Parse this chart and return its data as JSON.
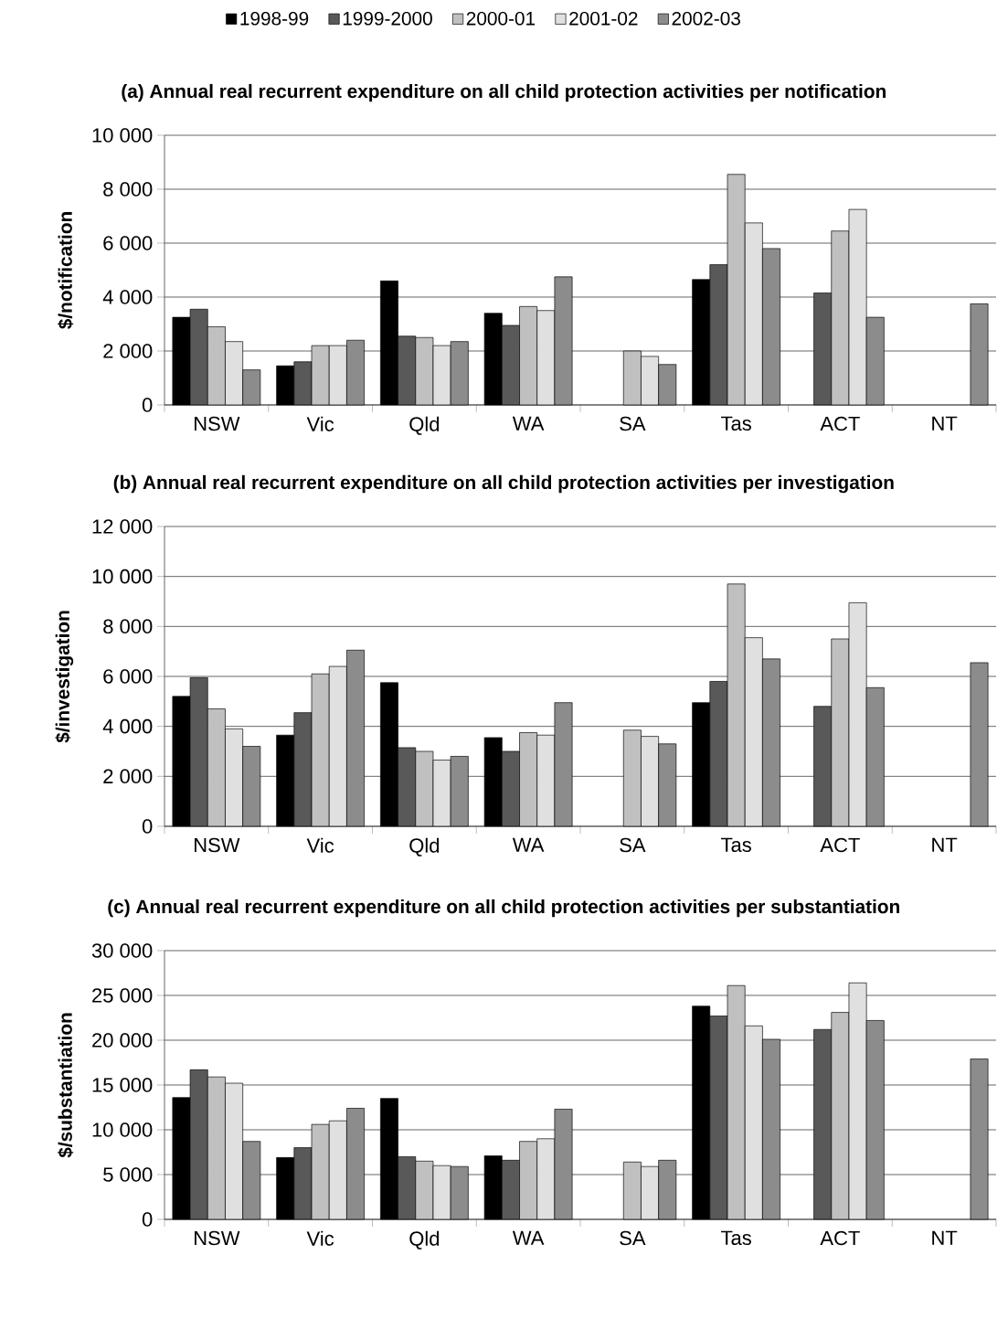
{
  "chart_data": [
    {
      "type": "bar",
      "title": "(a) Annual real recurrent expenditure on all child protection activities per notification",
      "ylabel": "$/notification",
      "categories": [
        "NSW",
        "Vic",
        "Qld",
        "WA",
        "SA",
        "Tas",
        "ACT",
        "NT"
      ],
      "series": [
        {
          "name": "1998-99",
          "color": "#000000",
          "values": [
            3250,
            1450,
            4600,
            3400,
            null,
            4650,
            null,
            null
          ]
        },
        {
          "name": "1999-2000",
          "color": "#595959",
          "values": [
            3550,
            1600,
            2550,
            2950,
            null,
            5200,
            4150,
            null
          ]
        },
        {
          "name": "2000-01",
          "color": "#c0c0c0",
          "values": [
            2900,
            2200,
            2500,
            3650,
            2000,
            8550,
            6450,
            null
          ]
        },
        {
          "name": "2001-02",
          "color": "#e0e0e0",
          "values": [
            2350,
            2200,
            2200,
            3500,
            1800,
            6750,
            7250,
            null
          ]
        },
        {
          "name": "2002-03",
          "color": "#8c8c8c",
          "values": [
            1300,
            2400,
            2350,
            4750,
            1500,
            5800,
            3250,
            3750
          ]
        }
      ],
      "ylim": [
        0,
        10000
      ],
      "yticks": [
        0,
        {
          "value": 2000,
          "label": "2 000"
        },
        {
          "value": 4000,
          "label": "4 000"
        },
        {
          "value": 6000,
          "label": "6 000"
        },
        {
          "value": 8000,
          "label": "8 000"
        },
        {
          "value": 10000,
          "label": "10 000"
        }
      ],
      "grid": "y",
      "legend": "top"
    },
    {
      "type": "bar",
      "title": "(b) Annual real recurrent expenditure on all child protection activities per investigation",
      "ylabel": "$/investigation",
      "categories": [
        "NSW",
        "Vic",
        "Qld",
        "WA",
        "SA",
        "Tas",
        "ACT",
        "NT"
      ],
      "series": [
        {
          "color": "#000000",
          "values": [
            5200,
            3650,
            5750,
            3550,
            null,
            4950,
            null,
            null
          ]
        },
        {
          "color": "#595959",
          "values": [
            5950,
            4550,
            3150,
            3000,
            null,
            5800,
            4800,
            null
          ]
        },
        {
          "color": "#c0c0c0",
          "values": [
            4700,
            6100,
            3000,
            3750,
            3850,
            9700,
            7500,
            null
          ]
        },
        {
          "color": "#e0e0e0",
          "values": [
            3900,
            6400,
            2650,
            3650,
            3600,
            7550,
            8950,
            null
          ]
        },
        {
          "color": "#8c8c8c",
          "values": [
            3200,
            7050,
            2800,
            4950,
            3300,
            6700,
            5550,
            6550
          ]
        }
      ],
      "ylim": [
        0,
        12000
      ],
      "yticks": [
        0,
        {
          "value": 2000,
          "label": "2 000"
        },
        {
          "value": 4000,
          "label": "4 000"
        },
        {
          "value": 6000,
          "label": "6 000"
        },
        {
          "value": 8000,
          "label": "8 000"
        },
        {
          "value": 10000,
          "label": "10 000"
        },
        {
          "value": 12000,
          "label": "12 000"
        }
      ],
      "grid": "y"
    },
    {
      "type": "bar",
      "title": "(c) Annual real recurrent expenditure on all child protection activities per substantiation",
      "ylabel": "$/substantiation",
      "categories": [
        "NSW",
        "Vic",
        "Qld",
        "WA",
        "SA",
        "Tas",
        "ACT",
        "NT"
      ],
      "series": [
        {
          "color": "#000000",
          "values": [
            13600,
            6900,
            13500,
            7100,
            null,
            23800,
            null,
            null
          ]
        },
        {
          "color": "#595959",
          "values": [
            16700,
            8000,
            7000,
            6600,
            null,
            22700,
            21200,
            null
          ]
        },
        {
          "color": "#c0c0c0",
          "values": [
            15900,
            10600,
            6500,
            8700,
            6400,
            26100,
            23100,
            null
          ]
        },
        {
          "color": "#e0e0e0",
          "values": [
            15200,
            11000,
            6000,
            9000,
            5900,
            21600,
            26400,
            null
          ]
        },
        {
          "color": "#8c8c8c",
          "values": [
            8700,
            12400,
            5900,
            12300,
            6600,
            20100,
            22200,
            17900
          ]
        }
      ],
      "ylim": [
        0,
        30000
      ],
      "yticks": [
        0,
        {
          "value": 5000,
          "label": "5 000"
        },
        {
          "value": 10000,
          "label": "10 000"
        },
        {
          "value": 15000,
          "label": "15 000"
        },
        {
          "value": 20000,
          "label": "20 000"
        },
        {
          "value": 25000,
          "label": "25 000"
        },
        {
          "value": 30000,
          "label": "30 000"
        }
      ],
      "grid": "y"
    }
  ]
}
